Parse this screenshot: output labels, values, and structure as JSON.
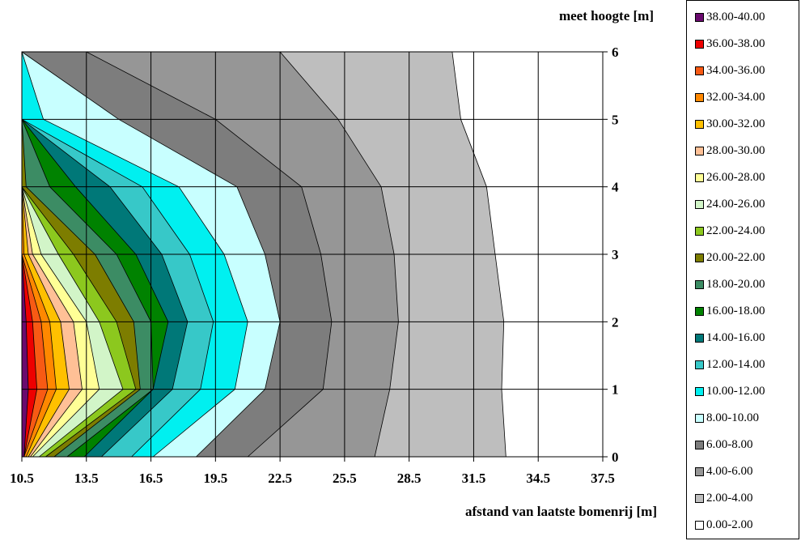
{
  "chart_data": {
    "type": "contour",
    "title": "",
    "xlabel": "afstand van laatste bomenrij [m]",
    "ylabel": "meet hoogte [m]",
    "x": [
      10.5,
      13.5,
      16.5,
      19.5,
      22.5,
      25.5,
      28.5,
      31.5,
      34.5,
      37.5
    ],
    "y": [
      0,
      1,
      2,
      3,
      4,
      5,
      6
    ],
    "x_tick_labels": [
      "10.5",
      "13.5",
      "16.5",
      "19.5",
      "22.5",
      "25.5",
      "28.5",
      "31.5",
      "34.5",
      "37.5"
    ],
    "y_tick_labels": [
      "0",
      "1",
      "2",
      "3",
      "4",
      "5",
      "6"
    ],
    "xlim": [
      10.5,
      37.5
    ],
    "ylim": [
      0,
      6
    ],
    "grid": true,
    "legend_position": "right",
    "contour_level_x_positions": {
      "description": "x position (m) where each contour level boundary crosses each height row y=0..6",
      "levels": [
        38,
        36,
        34,
        32,
        30,
        28,
        26,
        24,
        22,
        20,
        18,
        16,
        14,
        12,
        10,
        8,
        6,
        4,
        2
      ],
      "rows": [
        [
          10.6,
          10.6,
          10.6,
          10.7,
          10.8,
          10.9,
          11.0,
          11.3,
          11.6,
          12.0,
          12.6,
          13.4,
          14.2,
          15.6,
          16.6,
          18.6,
          21.0,
          26.9,
          33.0
        ],
        [
          10.8,
          11.2,
          11.7,
          12.1,
          12.7,
          13.3,
          14.1,
          15.2,
          15.8,
          16.0,
          16.6,
          16.6,
          17.5,
          18.8,
          20.4,
          21.8,
          24.5,
          27.6,
          32.8
        ],
        [
          10.7,
          11.0,
          11.4,
          11.8,
          12.3,
          12.9,
          13.5,
          14.1,
          14.9,
          15.7,
          16.5,
          17.3,
          18.2,
          19.4,
          21.0,
          22.5,
          24.9,
          28.0,
          32.9
        ],
        [
          10.5,
          10.5,
          10.5,
          10.6,
          10.8,
          11.0,
          11.4,
          12.2,
          12.9,
          13.9,
          14.9,
          15.8,
          17.0,
          18.3,
          19.9,
          21.8,
          24.4,
          27.8,
          32.5
        ],
        [
          10.5,
          10.5,
          10.5,
          10.5,
          10.5,
          10.5,
          10.5,
          10.5,
          10.5,
          10.7,
          11.8,
          13.0,
          14.6,
          16.1,
          17.8,
          20.5,
          23.5,
          27.2,
          32.1
        ],
        [
          10.5,
          10.5,
          10.5,
          10.5,
          10.5,
          10.5,
          10.5,
          10.5,
          10.5,
          10.5,
          10.5,
          10.5,
          10.5,
          10.5,
          11.5,
          15.0,
          19.5,
          25.2,
          30.9
        ],
        [
          10.5,
          10.5,
          10.5,
          10.5,
          10.5,
          10.5,
          10.5,
          10.5,
          10.5,
          10.5,
          10.5,
          10.5,
          10.5,
          10.5,
          10.5,
          10.5,
          13.5,
          22.5,
          30.5
        ]
      ]
    },
    "legend": [
      {
        "label": "38.00-40.00",
        "color": "#6a0a6e"
      },
      {
        "label": "36.00-38.00",
        "color": "#ee0000"
      },
      {
        "label": "34.00-36.00",
        "color": "#f85a14"
      },
      {
        "label": "32.00-34.00",
        "color": "#ff8800"
      },
      {
        "label": "30.00-32.00",
        "color": "#ffc000"
      },
      {
        "label": "28.00-30.00",
        "color": "#ffc096"
      },
      {
        "label": "26.00-28.00",
        "color": "#ffff96"
      },
      {
        "label": "24.00-26.00",
        "color": "#d2f5c8"
      },
      {
        "label": "22.00-24.00",
        "color": "#8cc81e"
      },
      {
        "label": "20.00-22.00",
        "color": "#7d7d00"
      },
      {
        "label": "18.00-20.00",
        "color": "#3c8c64"
      },
      {
        "label": "16.00-18.00",
        "color": "#008200"
      },
      {
        "label": "14.00-16.00",
        "color": "#007878"
      },
      {
        "label": "12.00-14.00",
        "color": "#37c8c8"
      },
      {
        "label": "10.00-12.00",
        "color": "#00f0f0"
      },
      {
        "label": "8.00-10.00",
        "color": "#c8ffff"
      },
      {
        "label": "6.00-8.00",
        "color": "#7d7d7d"
      },
      {
        "label": "4.00-6.00",
        "color": "#969696"
      },
      {
        "label": "2.00-4.00",
        "color": "#bebebe"
      },
      {
        "label": "0.00-2.00",
        "color": "#ffffff"
      }
    ]
  }
}
